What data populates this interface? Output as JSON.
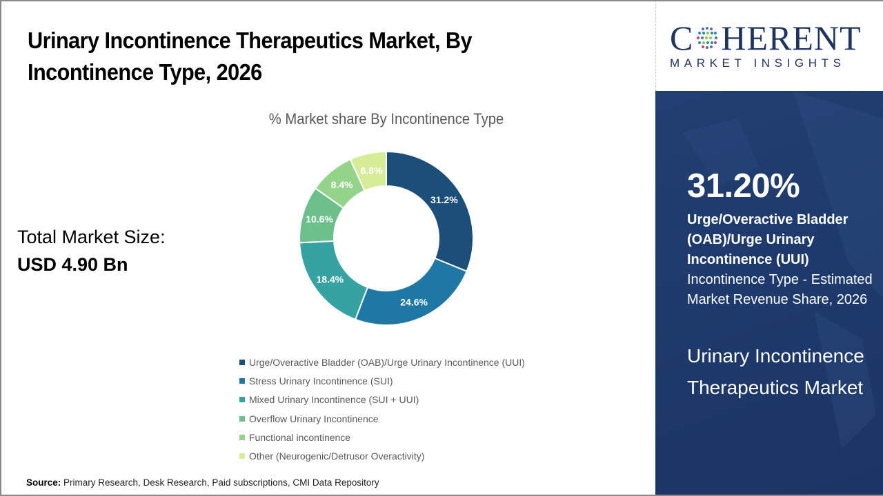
{
  "header": {
    "title": "Urinary Incontinence Therapeutics Market, By Incontinence Type, 2026"
  },
  "market_size": {
    "label": "Total Market Size:",
    "value": "USD 4.90 Bn"
  },
  "source": {
    "label": "Source:",
    "text": " Primary Research, Desk Research, Paid subscriptions, CMI Data Repository"
  },
  "logo": {
    "main_left": "C",
    "main_right": "HERENT",
    "sub": "MARKET INSIGHTS"
  },
  "highlight": {
    "percent": "31.20%",
    "segment": "Urge/Overactive Bladder (OAB)/Urge Urinary Incontinence (UUI)",
    "description": "Incontinence Type - Estimated Market Revenue Share, 2026",
    "market_name": "Urinary Incontinence Therapeutics Market"
  },
  "chart_data": {
    "type": "pie",
    "subtype": "donut",
    "title": "% Market share By Incontinence Type",
    "categories": [
      "Urge/Overactive Bladder (OAB)/Urge Urinary Incontinence (UUI)",
      "Stress Urinary Incontinence (SUI)",
      "Mixed Urinary Incontinence (SUI + UUI)",
      "Overflow Urinary Incontinence",
      "Functional incontinence",
      "Other (Neurogenic/Detrusor Overactivity)"
    ],
    "values": [
      31.2,
      24.6,
      18.4,
      10.6,
      8.4,
      6.8
    ],
    "data_labels": [
      "31.2%",
      "24.6%",
      "18.4%",
      "10.6%",
      "8.4%",
      "6.8%"
    ],
    "colors": [
      "#1b4f7a",
      "#1f77a4",
      "#36a2a2",
      "#6cc08b",
      "#94d38a",
      "#d6ec96"
    ],
    "unit": "%",
    "legend_position": "bottom",
    "start_angle": "12 o'clock, clockwise"
  }
}
